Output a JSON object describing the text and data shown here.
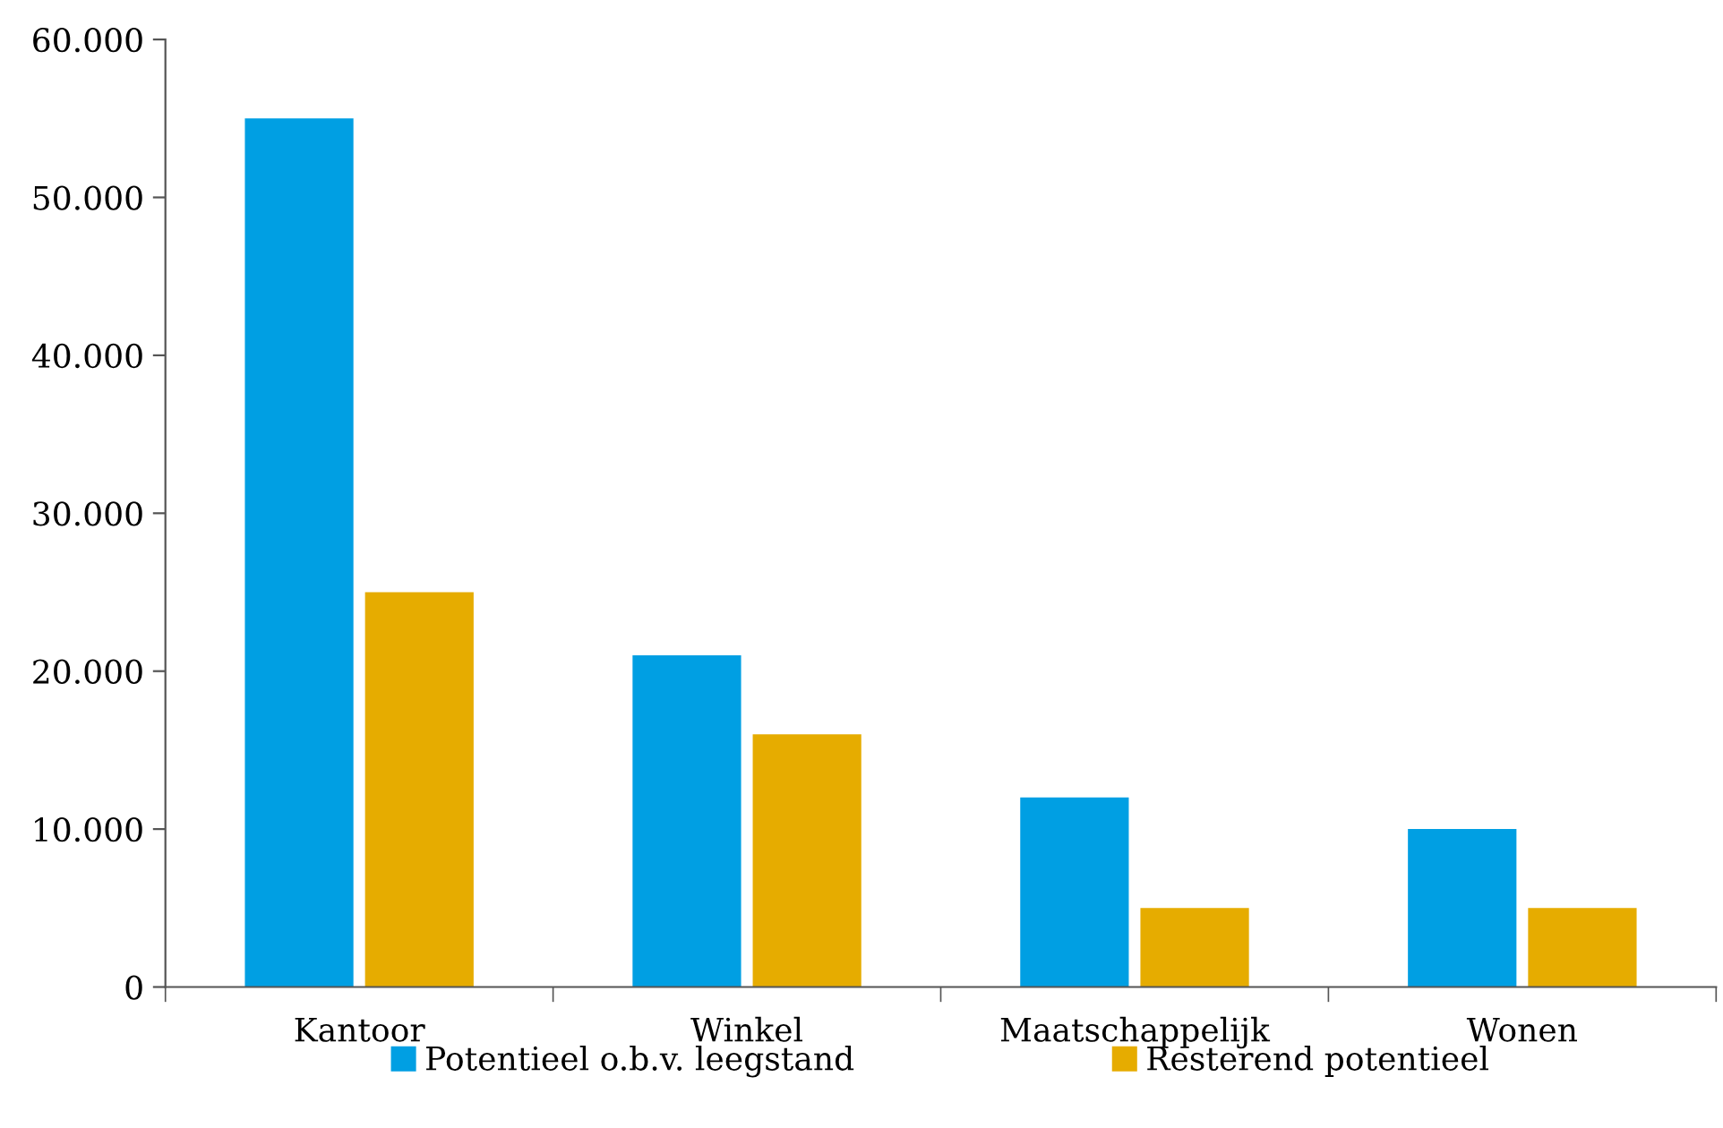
{
  "chart_data": {
    "type": "bar",
    "categories": [
      "Kantoor",
      "Winkel",
      "Maatschappelijk",
      "Wonen"
    ],
    "series": [
      {
        "name": "Potentieel o.b.v. leegstand",
        "color": "#009fe3",
        "values": [
          55000,
          21000,
          12000,
          10000
        ]
      },
      {
        "name": "Resterend potentieel",
        "color": "#e6ac00",
        "values": [
          25000,
          16000,
          5000,
          5000
        ]
      }
    ],
    "ylim": [
      0,
      60000
    ],
    "yticks": [
      0,
      {
        "value": 10000,
        "label": "10.000"
      },
      {
        "value": 20000,
        "label": "20.000"
      },
      {
        "value": 30000,
        "label": "30.000"
      },
      {
        "value": 40000,
        "label": "40.000"
      },
      {
        "value": 50000,
        "label": "50.000"
      },
      {
        "value": 60000,
        "label": "60.000"
      }
    ],
    "grid": false,
    "legend": "bottom"
  }
}
